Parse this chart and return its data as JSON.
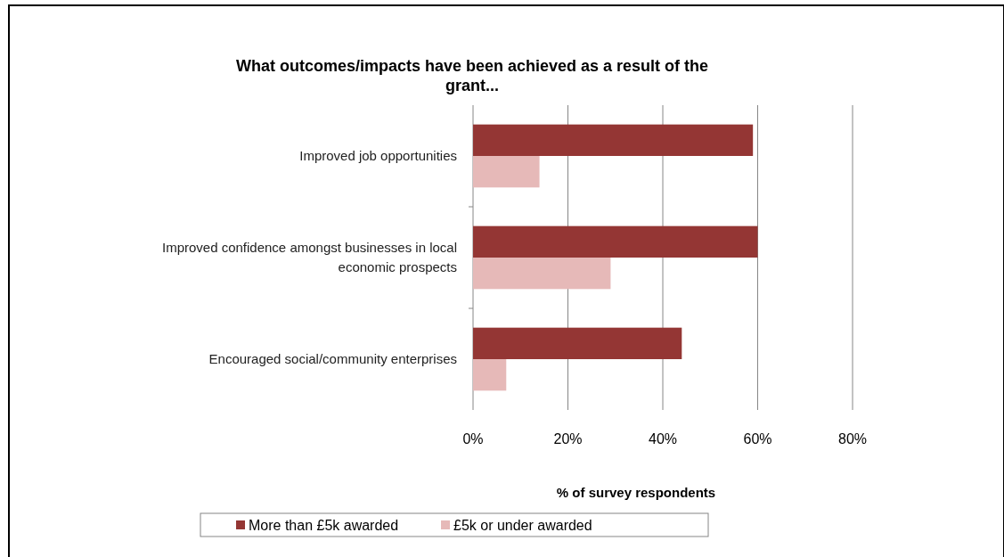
{
  "chart_data": {
    "type": "bar",
    "orientation": "horizontal",
    "title": "What outcomes/impacts have been achieved as a result of the grant...",
    "xlabel": "% of survey respondents",
    "categories": [
      "Improved job opportunities",
      "Improved confidence amongst businesses in local economic prospects",
      "Encouraged social/community enterprises"
    ],
    "series": [
      {
        "name": "More than £5k awarded",
        "color": "#943634",
        "values": [
          59,
          60,
          44
        ]
      },
      {
        "name": "£5k or under awarded",
        "color": "#e6b9b8",
        "values": [
          14,
          29,
          7
        ]
      }
    ],
    "xlim": [
      0,
      80
    ],
    "xticks": [
      {
        "value": 0,
        "label": "0%"
      },
      {
        "value": 20,
        "label": "20%"
      },
      {
        "value": 40,
        "label": "40%"
      },
      {
        "value": 60,
        "label": "60%"
      },
      {
        "value": 80,
        "label": "80%"
      }
    ],
    "grid": "x",
    "legend": "bottom"
  }
}
